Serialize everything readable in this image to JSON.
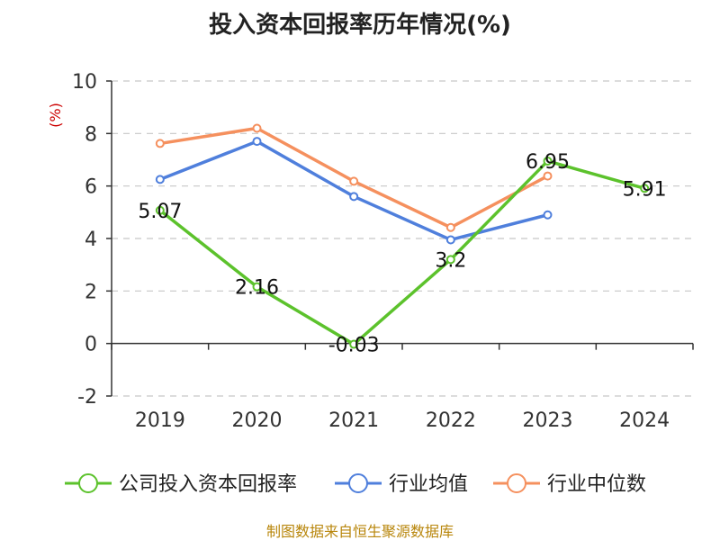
{
  "chart_data": {
    "type": "line",
    "title": "投入资本回报率历年情况(%)",
    "unit_label": "(%)",
    "categories": [
      "2019",
      "2020",
      "2021",
      "2022",
      "2023",
      "2024"
    ],
    "ylim": [
      -2,
      10
    ],
    "yticks": [
      -2,
      0,
      2,
      4,
      6,
      8,
      10
    ],
    "grid": true,
    "legend_position": "bottom",
    "series": [
      {
        "name": "公司投入资本回报率",
        "color": "#5cc22c",
        "values": [
          5.07,
          2.16,
          -0.03,
          3.2,
          6.95,
          5.91
        ],
        "labels": [
          "5.07",
          "2.16",
          "-0.03",
          "3.2",
          "6.95",
          "5.91"
        ]
      },
      {
        "name": "行业均值",
        "color": "#4f7fdc",
        "values": [
          6.25,
          7.7,
          5.6,
          3.95,
          4.9,
          null
        ]
      },
      {
        "name": "行业中位数",
        "color": "#f5905e",
        "values": [
          7.62,
          8.2,
          6.18,
          4.42,
          6.38,
          null
        ]
      }
    ]
  },
  "source": "制图数据来自恒生聚源数据库"
}
